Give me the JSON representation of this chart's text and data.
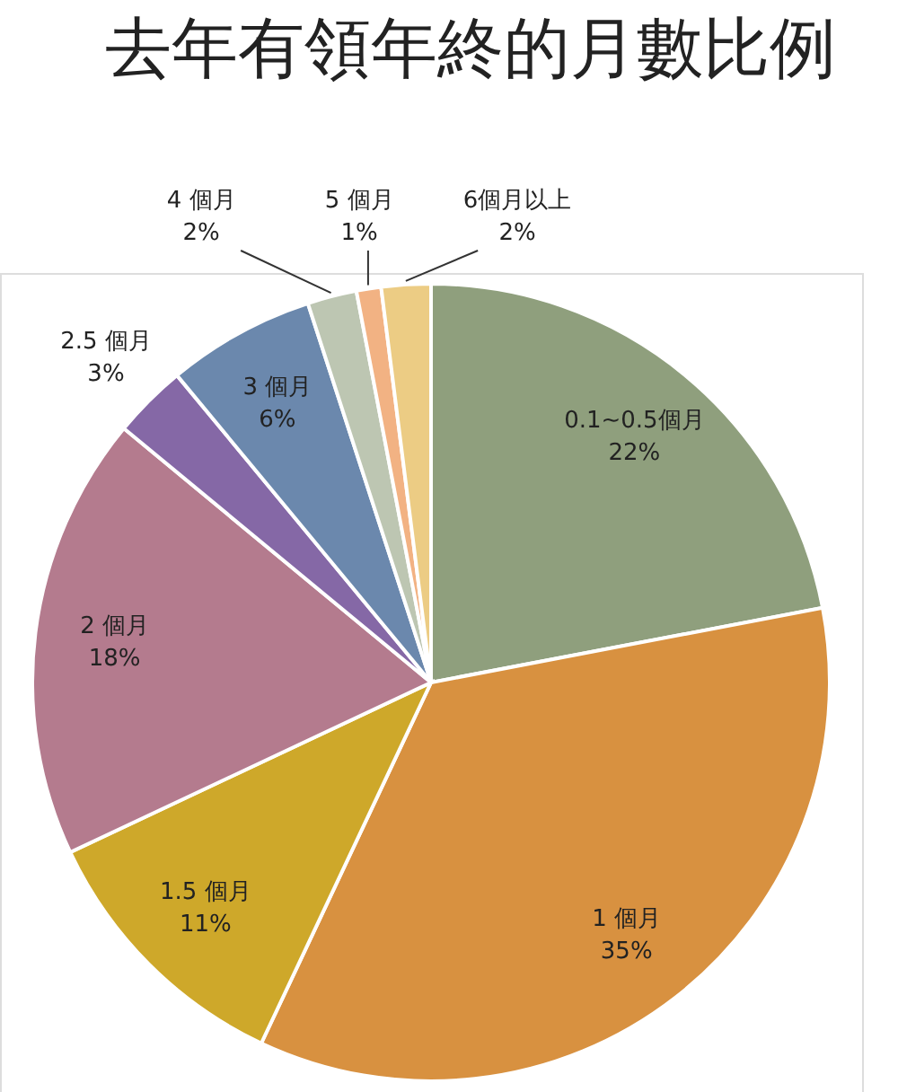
{
  "chart_data": {
    "type": "pie",
    "title": "去年有領年終的月數比例",
    "categories": [
      "0.1~0.5個月",
      "1 個月",
      "1.5 個月",
      "2 個月",
      "2.5 個月",
      "3 個月",
      "4 個月",
      "5 個月",
      "6個月以上"
    ],
    "values": [
      22,
      35,
      11,
      18,
      3,
      6,
      2,
      1,
      2
    ],
    "value_labels": [
      "22%",
      "35%",
      "11%",
      "18%",
      "3%",
      "6%",
      "2%",
      "1%",
      "2%"
    ],
    "colors": [
      "#8f9f7d",
      "#d89140",
      "#cea82a",
      "#b47b8e",
      "#8568a6",
      "#6b88ad",
      "#bdc6b2",
      "#f2b283",
      "#eccc84"
    ]
  }
}
